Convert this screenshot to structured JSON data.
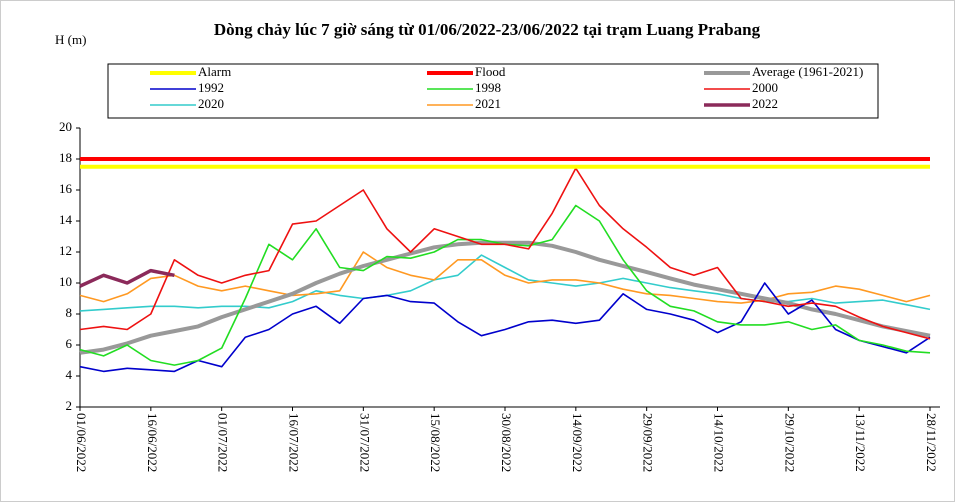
{
  "chart_data": {
    "type": "line",
    "title": "Dòng chảy lúc 7 giờ sáng từ 01/06/2022-23/06/2022 tại trạm Luang Prabang",
    "y_label": "H (m)",
    "categories": [
      "01/06/2022",
      null,
      null,
      "16/06/2022",
      null,
      null,
      "01/07/2022",
      null,
      null,
      "16/07/2022",
      null,
      null,
      "31/07/2022",
      null,
      null,
      "15/08/2022",
      null,
      null,
      "30/08/2022",
      null,
      null,
      "14/09/2022",
      null,
      null,
      "29/09/2022",
      null,
      null,
      "14/10/2022",
      null,
      null,
      "29/10/2022",
      null,
      null,
      "13/11/2022",
      null,
      null,
      "28/11/2022"
    ],
    "ylim": [
      2,
      20
    ],
    "yticks": [
      2,
      4,
      6,
      8,
      10,
      12,
      14,
      16,
      18,
      20
    ],
    "legend": "top",
    "series": [
      {
        "name": "Alarm",
        "color": "#ffff00",
        "values": [
          17.5,
          17.5,
          17.5,
          17.5,
          17.5,
          17.5,
          17.5,
          17.5,
          17.5,
          17.5,
          17.5,
          17.5,
          17.5,
          17.5,
          17.5,
          17.5,
          17.5,
          17.5,
          17.5,
          17.5,
          17.5,
          17.5,
          17.5,
          17.5,
          17.5,
          17.5,
          17.5,
          17.5,
          17.5,
          17.5,
          17.5,
          17.5,
          17.5,
          17.5,
          17.5,
          17.5,
          17.5
        ]
      },
      {
        "name": "Flood",
        "color": "#ff0000",
        "values": [
          18,
          18,
          18,
          18,
          18,
          18,
          18,
          18,
          18,
          18,
          18,
          18,
          18,
          18,
          18,
          18,
          18,
          18,
          18,
          18,
          18,
          18,
          18,
          18,
          18,
          18,
          18,
          18,
          18,
          18,
          18,
          18,
          18,
          18,
          18,
          18,
          18
        ]
      },
      {
        "name": "Average (1961-2021)",
        "color": "#999999",
        "values": [
          5.5,
          5.7,
          6.1,
          6.6,
          6.9,
          7.2,
          7.8,
          8.3,
          8.8,
          9.3,
          10.0,
          10.6,
          11.1,
          11.5,
          11.9,
          12.3,
          12.5,
          12.6,
          12.6,
          12.6,
          12.4,
          12.0,
          11.5,
          11.1,
          10.7,
          10.3,
          9.9,
          9.6,
          9.3,
          9.0,
          8.7,
          8.3,
          8.0,
          7.6,
          7.2,
          6.9,
          6.6
        ]
      },
      {
        "name": "1992",
        "color": "#0000cc",
        "values": [
          4.6,
          4.3,
          4.5,
          4.4,
          4.3,
          5.0,
          4.6,
          6.5,
          7.0,
          8.0,
          8.5,
          7.4,
          9.0,
          9.2,
          8.8,
          8.7,
          7.5,
          6.6,
          7.0,
          7.5,
          7.6,
          7.4,
          7.6,
          9.3,
          8.3,
          8.0,
          7.6,
          6.8,
          7.5,
          10.0,
          8.0,
          8.9,
          7.0,
          6.3,
          5.9,
          5.5,
          6.5
        ]
      },
      {
        "name": "1998",
        "color": "#22dd22",
        "values": [
          5.7,
          5.3,
          6.0,
          5.0,
          4.7,
          5.0,
          5.8,
          9.0,
          12.5,
          11.5,
          13.5,
          11.0,
          10.8,
          11.7,
          11.6,
          12.0,
          12.8,
          12.8,
          12.5,
          12.4,
          12.8,
          15.0,
          14.0,
          11.5,
          9.5,
          8.5,
          8.2,
          7.5,
          7.3,
          7.3,
          7.5,
          7.0,
          7.3,
          6.3,
          6.0,
          5.6,
          5.5
        ]
      },
      {
        "name": "2000",
        "color": "#ee1111",
        "values": [
          7.0,
          7.2,
          7.0,
          8.0,
          11.5,
          10.5,
          10.0,
          10.5,
          10.8,
          13.8,
          14.0,
          15.0,
          16.0,
          13.5,
          12.0,
          13.5,
          13.0,
          12.5,
          12.5,
          12.2,
          14.5,
          17.4,
          15.0,
          13.5,
          12.3,
          11.0,
          10.5,
          11.0,
          9.0,
          8.8,
          8.5,
          8.7,
          8.5,
          7.8,
          7.2,
          6.8,
          6.4
        ]
      },
      {
        "name": "2020",
        "color": "#33cccc",
        "values": [
          8.2,
          8.3,
          8.4,
          8.5,
          8.5,
          8.4,
          8.5,
          8.5,
          8.4,
          8.8,
          9.5,
          9.2,
          9.0,
          9.2,
          9.5,
          10.2,
          10.5,
          11.8,
          11.0,
          10.2,
          10.0,
          9.8,
          10.0,
          10.3,
          10.0,
          9.7,
          9.5,
          9.3,
          9.0,
          8.8,
          8.8,
          9.0,
          8.7,
          8.8,
          8.9,
          8.6,
          8.3
        ]
      },
      {
        "name": "2021",
        "color": "#ff9922",
        "values": [
          9.2,
          8.8,
          9.3,
          10.3,
          10.5,
          9.8,
          9.5,
          9.8,
          9.5,
          9.2,
          9.3,
          9.5,
          12.0,
          11.0,
          10.5,
          10.2,
          11.5,
          11.5,
          10.5,
          10.0,
          10.2,
          10.2,
          10.0,
          9.6,
          9.3,
          9.2,
          9.0,
          8.8,
          8.7,
          8.9,
          9.3,
          9.4,
          9.8,
          9.6,
          9.2,
          8.8,
          9.2
        ]
      },
      {
        "name": "2022",
        "color": "#8b2a5a",
        "values": [
          9.8,
          10.5,
          10.0,
          10.8,
          10.5,
          null,
          null,
          null,
          null,
          null,
          null,
          null,
          null,
          null,
          null,
          null,
          null,
          null,
          null,
          null,
          null,
          null,
          null,
          null,
          null,
          null,
          null,
          null,
          null,
          null,
          null,
          null,
          null,
          null,
          null,
          null,
          null
        ]
      }
    ]
  }
}
